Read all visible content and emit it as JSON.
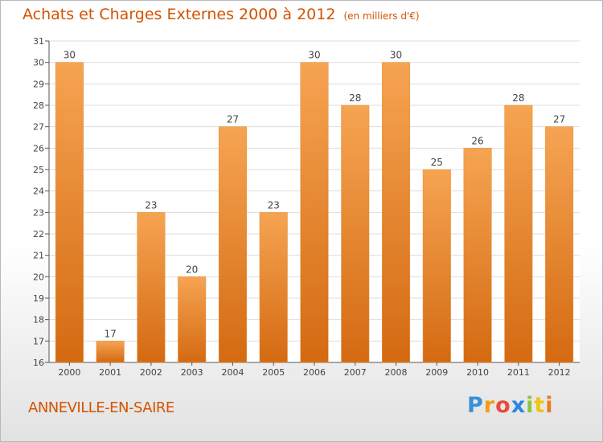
{
  "header": {
    "title": "Achats et Charges Externes 2000 à 2012",
    "unit": "(en milliers d'€)"
  },
  "footer": {
    "town": "ANNEVILLE-EN-SAIRE",
    "logo": "Proxiti",
    "logo_letters": [
      "P",
      "r",
      "o",
      "x",
      "i",
      "t",
      "i"
    ]
  },
  "colors": {
    "accent": "#d35400",
    "bar_top": "#f6a452",
    "bar_bottom": "#d46a12",
    "grid": "#dddddd",
    "axis": "#555555"
  },
  "chart_data": {
    "type": "bar",
    "title": "Achats et Charges Externes 2000 à 2012",
    "subtitle": "(en milliers d'€)",
    "xlabel": "",
    "ylabel": "",
    "categories": [
      "2000",
      "2001",
      "2002",
      "2003",
      "2004",
      "2005",
      "2006",
      "2007",
      "2008",
      "2009",
      "2010",
      "2011",
      "2012"
    ],
    "values": [
      30,
      17,
      23,
      20,
      27,
      23,
      30,
      28,
      30,
      25,
      26,
      28,
      27
    ],
    "ylim": [
      16,
      31
    ],
    "yticks": [
      16,
      17,
      18,
      19,
      20,
      21,
      22,
      23,
      24,
      25,
      26,
      27,
      28,
      29,
      30,
      31
    ],
    "grid": true,
    "data_labels": true
  }
}
